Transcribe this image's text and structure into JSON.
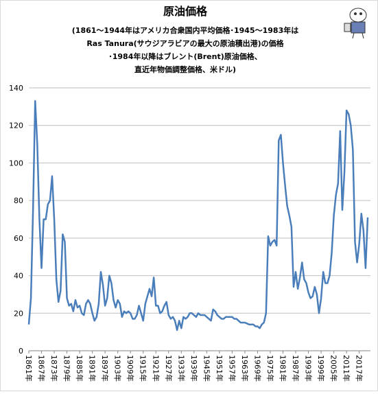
{
  "chart_data": {
    "type": "line",
    "title": "原油価格",
    "subtitle": [
      "(1861〜1944年はアメリカ合衆国内平均価格･1945〜1983年は",
      "Ras Tanura(サウジアラビアの最大の原油積出港)の価格",
      "･1984年以降はブレント(Brent)原油価格、",
      "直近年物価調整価格、米ドル)"
    ],
    "color": "#4a7ebb",
    "grid": true,
    "x": [
      1861,
      1862,
      1863,
      1864,
      1865,
      1866,
      1867,
      1868,
      1869,
      1870,
      1871,
      1872,
      1873,
      1874,
      1875,
      1876,
      1877,
      1878,
      1879,
      1880,
      1881,
      1882,
      1883,
      1884,
      1885,
      1886,
      1887,
      1888,
      1889,
      1890,
      1891,
      1892,
      1893,
      1894,
      1895,
      1896,
      1897,
      1898,
      1899,
      1900,
      1901,
      1902,
      1903,
      1904,
      1905,
      1906,
      1907,
      1908,
      1909,
      1910,
      1911,
      1912,
      1913,
      1914,
      1915,
      1916,
      1917,
      1918,
      1919,
      1920,
      1921,
      1922,
      1923,
      1924,
      1925,
      1926,
      1927,
      1928,
      1929,
      1930,
      1931,
      1932,
      1933,
      1934,
      1935,
      1936,
      1937,
      1938,
      1939,
      1940,
      1941,
      1942,
      1943,
      1944,
      1945,
      1946,
      1947,
      1948,
      1949,
      1950,
      1951,
      1952,
      1953,
      1954,
      1955,
      1956,
      1957,
      1958,
      1959,
      1960,
      1961,
      1962,
      1963,
      1964,
      1965,
      1966,
      1967,
      1968,
      1969,
      1970,
      1971,
      1972,
      1973,
      1974,
      1975,
      1976,
      1977,
      1978,
      1979,
      1980,
      1981,
      1982,
      1983,
      1984,
      1985,
      1986,
      1987,
      1988,
      1989,
      1990,
      1991,
      1992,
      1993,
      1994,
      1995,
      1996,
      1997,
      1998,
      1999,
      2000,
      2001,
      2002,
      2003,
      2004,
      2005,
      2006,
      2007,
      2008,
      2009,
      2010,
      2011,
      2012,
      2013,
      2014,
      2015,
      2016,
      2017,
      2018,
      2019,
      2020,
      2021
    ],
    "values": [
      14,
      28,
      75,
      133,
      110,
      70,
      44,
      70,
      70,
      78,
      80,
      93,
      70,
      38,
      26,
      32,
      62,
      58,
      28,
      24,
      25,
      21,
      27,
      23,
      24,
      20,
      19,
      25,
      27,
      25,
      20,
      16,
      18,
      25,
      42,
      35,
      24,
      28,
      40,
      36,
      27,
      23,
      27,
      25,
      18,
      21,
      20,
      21,
      20,
      17,
      17,
      19,
      24,
      20,
      16,
      25,
      29,
      33,
      29,
      39,
      24,
      24,
      20,
      21,
      24,
      26,
      19,
      17,
      18,
      16,
      11,
      16,
      12,
      18,
      17,
      18,
      20,
      20,
      19,
      18,
      20,
      19,
      19,
      19,
      18,
      17,
      16,
      22,
      21,
      19,
      18,
      17,
      17,
      18,
      18,
      18,
      18,
      17,
      17,
      16,
      15,
      15,
      15,
      14.5,
      14,
      14,
      14,
      13,
      13,
      12,
      14,
      15,
      20,
      61,
      56,
      58,
      59,
      56,
      112,
      115,
      100,
      88,
      77,
      72,
      66,
      34,
      42,
      33,
      39,
      47,
      38,
      36,
      31,
      28,
      29,
      34,
      30,
      20,
      28,
      42,
      36,
      36,
      40,
      52,
      72,
      83,
      89,
      117,
      75,
      95,
      128,
      126,
      120,
      107,
      58,
      47,
      57,
      73,
      64,
      44,
      71
    ],
    "xlim": [
      1861,
      2021
    ],
    "xticks": [
      {
        "value": 1861,
        "label": "1861年"
      },
      {
        "value": 1867,
        "label": "1867年"
      },
      {
        "value": 1873,
        "label": "1873年"
      },
      {
        "value": 1879,
        "label": "1879年"
      },
      {
        "value": 1885,
        "label": "1885年"
      },
      {
        "value": 1891,
        "label": "1891年"
      },
      {
        "value": 1897,
        "label": "1897年"
      },
      {
        "value": 1903,
        "label": "1903年"
      },
      {
        "value": 1909,
        "label": "1909年"
      },
      {
        "value": 1915,
        "label": "1915年"
      },
      {
        "value": 1921,
        "label": "1921年"
      },
      {
        "value": 1927,
        "label": "1927年"
      },
      {
        "value": 1933,
        "label": "1933年"
      },
      {
        "value": 1939,
        "label": "1939年"
      },
      {
        "value": 1945,
        "label": "1945年"
      },
      {
        "value": 1951,
        "label": "1951年"
      },
      {
        "value": 1957,
        "label": "1957年"
      },
      {
        "value": 1963,
        "label": "1963年"
      },
      {
        "value": 1969,
        "label": "1969年"
      },
      {
        "value": 1975,
        "label": "1975年"
      },
      {
        "value": 1981,
        "label": "1981年"
      },
      {
        "value": 1987,
        "label": "1987年"
      },
      {
        "value": 1993,
        "label": "1993年"
      },
      {
        "value": 1999,
        "label": "1999年"
      },
      {
        "value": 2005,
        "label": "2005年"
      },
      {
        "value": 2011,
        "label": "2011年"
      },
      {
        "value": 2017,
        "label": "2017年"
      }
    ],
    "ylim": [
      0,
      140
    ],
    "yticks": [
      0,
      20,
      40,
      60,
      80,
      100,
      120,
      140
    ]
  }
}
